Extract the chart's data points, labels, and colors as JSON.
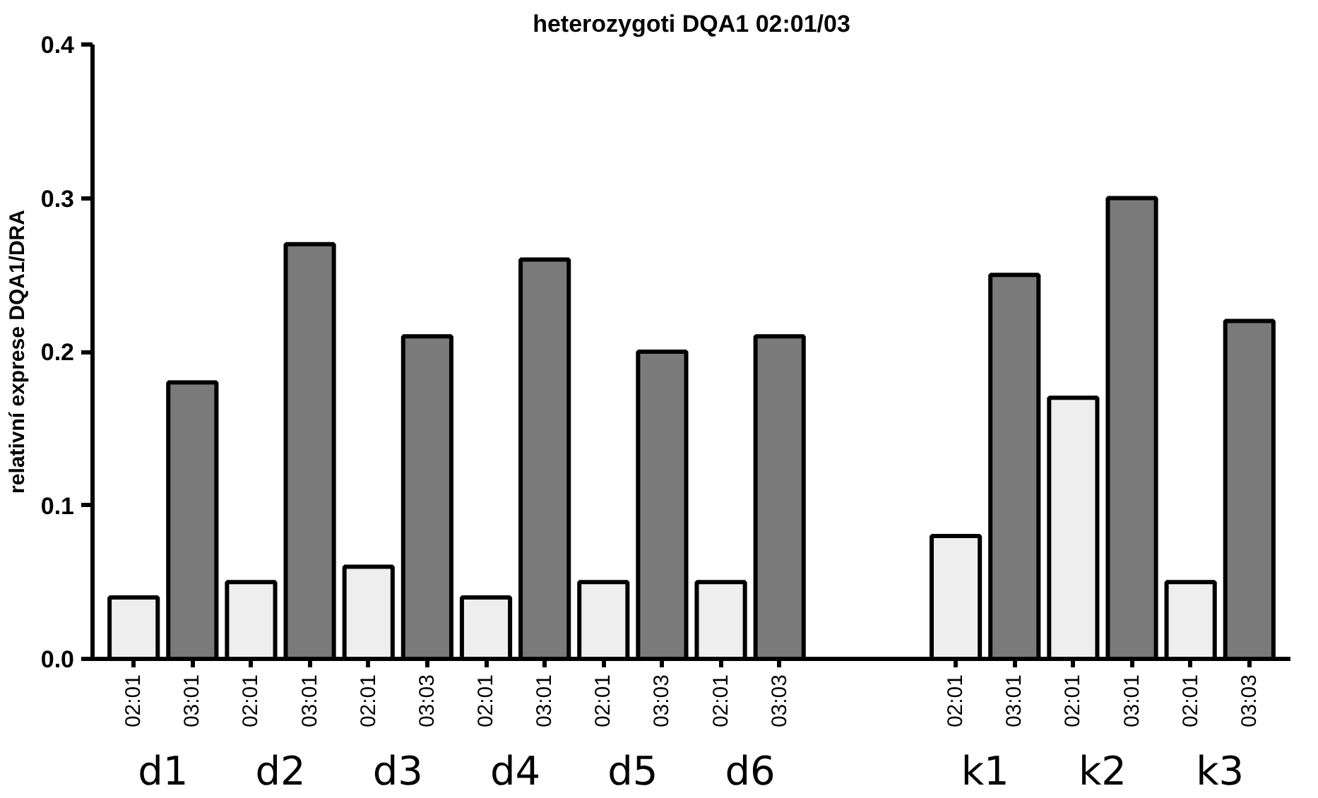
{
  "chart_data": {
    "type": "bar",
    "title": "heterozygoti DQA1 02:01/03",
    "ylabel": "relativní exprese DQA1/DRA",
    "categories": [
      "02:01",
      "03:01",
      "02:01",
      "03:01",
      "02:01",
      "03:03",
      "02:01",
      "03:01",
      "02:01",
      "03:03",
      "02:01",
      "03:03",
      null,
      null,
      "02:01",
      "03:01",
      "02:01",
      "03:01",
      "02:01",
      "03:03"
    ],
    "values": [
      0.04,
      0.18,
      0.05,
      0.27,
      0.06,
      0.21,
      0.04,
      0.26,
      0.05,
      0.2,
      0.05,
      0.21,
      null,
      null,
      0.08,
      0.25,
      0.17,
      0.3,
      0.05,
      0.22
    ],
    "colors": [
      "#eeeeee",
      "#7a7a7a",
      "#eeeeee",
      "#7a7a7a",
      "#eeeeee",
      "#7a7a7a",
      "#eeeeee",
      "#7a7a7a",
      "#eeeeee",
      "#7a7a7a",
      "#eeeeee",
      "#7a7a7a",
      null,
      null,
      "#eeeeee",
      "#7a7a7a",
      "#eeeeee",
      "#7a7a7a",
      "#eeeeee",
      "#7a7a7a"
    ],
    "annotations": [
      "d1",
      "d2",
      "d3",
      "d4",
      "d5",
      "d6",
      "k1",
      "k2",
      "k3"
    ],
    "ylim": [
      0,
      0.4
    ],
    "yticks": [
      {
        "value": 0,
        "label": "0.0"
      },
      {
        "value": 0.1,
        "label": "0.1"
      },
      {
        "value": 0.2,
        "label": "0.2"
      },
      {
        "value": 0.3,
        "label": "0.3"
      },
      {
        "value": 0.4,
        "label": "0.4"
      }
    ],
    "grid": false
  }
}
